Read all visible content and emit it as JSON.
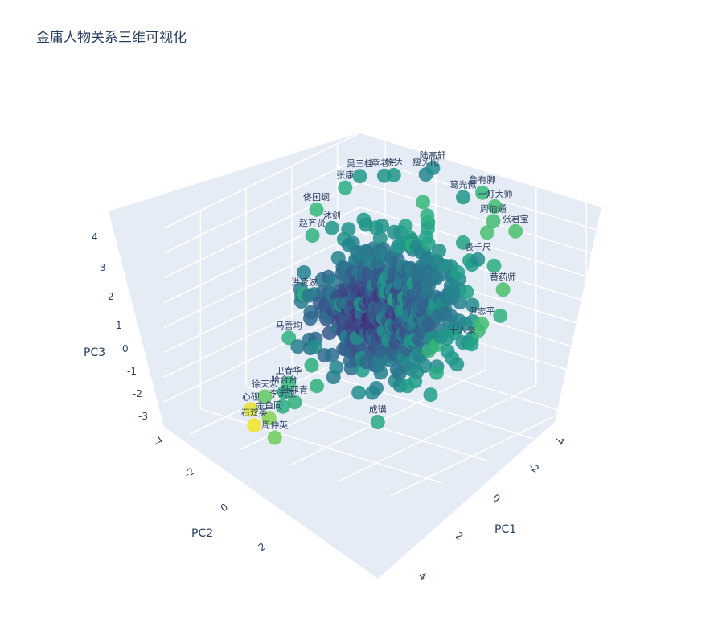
{
  "chart_data": {
    "type": "scatter",
    "projection": "3d",
    "title": "金庸人物关系三维可视化",
    "axes": {
      "x": {
        "label": "PC1",
        "ticks": [
          "-4",
          "-2",
          "0",
          "2",
          "4"
        ]
      },
      "y": {
        "label": "PC2",
        "ticks": [
          "-4",
          "-2",
          "0",
          "2"
        ]
      },
      "z": {
        "label": "PC3",
        "ticks": [
          "-3",
          "-2",
          "-1",
          "0",
          "1",
          "2",
          "3",
          "4"
        ]
      }
    },
    "colorscale": "viridis",
    "labeled_points": [
      {
        "name": "陆高轩",
        "x": -1.2,
        "y": -4.0,
        "z": 4.2,
        "c": 0.55
      },
      {
        "name": "瘦头陀",
        "x": -1.3,
        "y": -3.8,
        "z": 4.0,
        "c": 0.52
      },
      {
        "name": "章老三",
        "x": -2.5,
        "y": -3.3,
        "z": 3.8,
        "c": 0.58
      },
      {
        "name": "徐达",
        "x": -2.3,
        "y": -3.5,
        "z": 3.8,
        "c": 0.6
      },
      {
        "name": "吴三桂",
        "x": -3.2,
        "y": -3.0,
        "z": 3.7,
        "c": 0.62
      },
      {
        "name": "鲁有脚",
        "x": 0.5,
        "y": -4.3,
        "z": 3.6,
        "c": 0.75
      },
      {
        "name": "葛光佩",
        "x": 0.0,
        "y": -4.0,
        "z": 3.4,
        "c": 0.6
      },
      {
        "name": "一灯大师",
        "x": 1.0,
        "y": -4.3,
        "z": 3.2,
        "c": 0.78
      },
      {
        "name": "周伯通",
        "x": 1.2,
        "y": -4.0,
        "z": 2.8,
        "c": 0.78
      },
      {
        "name": "张君宝",
        "x": 2.0,
        "y": -4.1,
        "z": 2.6,
        "c": 0.8
      },
      {
        "name": "张康",
        "x": -3.6,
        "y": -2.8,
        "z": 3.2,
        "c": 0.7
      },
      {
        "name": "佟国纲",
        "x": -4.2,
        "y": -2.2,
        "z": 2.4,
        "c": 0.75
      },
      {
        "name": "赵齐贤",
        "x": -4.0,
        "y": -1.8,
        "z": 1.6,
        "c": 0.72
      },
      {
        "name": "沐剑",
        "x": -3.4,
        "y": -2.0,
        "z": 2.0,
        "c": 0.6
      },
      {
        "name": "裘千尺",
        "x": 1.5,
        "y": -3.0,
        "z": 1.8,
        "c": 0.55
      },
      {
        "name": "黄药师",
        "x": 2.5,
        "y": -3.0,
        "z": 0.9,
        "c": 0.8
      },
      {
        "name": "尹志平",
        "x": 2.2,
        "y": -2.4,
        "z": -0.3,
        "c": 0.78
      },
      {
        "name": "十人豪",
        "x": 1.8,
        "y": -2.0,
        "z": -1.0,
        "c": 0.6
      },
      {
        "name": "洪凌波",
        "x": -3.6,
        "y": -1.0,
        "z": -0.3,
        "c": 0.72
      },
      {
        "name": "马善均",
        "x": -3.3,
        "y": 0.0,
        "z": -1.5,
        "c": 0.72
      },
      {
        "name": "成璜",
        "x": 0.6,
        "y": 0.4,
        "z": -3.5,
        "c": 0.68
      },
      {
        "name": "徐天宏",
        "x": -2.8,
        "y": 1.6,
        "z": -3.0,
        "c": 0.85
      },
      {
        "name": "心砚",
        "x": -3.0,
        "y": 2.0,
        "z": -3.4,
        "c": 0.98
      },
      {
        "name": "石双英",
        "x": -2.5,
        "y": 2.4,
        "z": -3.7,
        "c": 0.99
      },
      {
        "name": "余鱼同",
        "x": -2.0,
        "y": 2.3,
        "z": -3.3,
        "c": 0.9
      },
      {
        "name": "周仲英",
        "x": -1.5,
        "y": 2.6,
        "z": -3.8,
        "c": 0.88
      },
      {
        "name": "卫春华",
        "x": -2.4,
        "y": 1.0,
        "z": -2.6,
        "c": 0.75
      },
      {
        "name": "陆菲青",
        "x": -1.8,
        "y": 1.4,
        "z": -3.0,
        "c": 0.72
      },
      {
        "name": "李沅芷",
        "x": -2.0,
        "y": 1.7,
        "z": -3.1,
        "c": 0.7
      },
      {
        "name": "哈合台",
        "x": -2.3,
        "y": 1.3,
        "z": -2.8,
        "c": 0.7
      }
    ]
  }
}
